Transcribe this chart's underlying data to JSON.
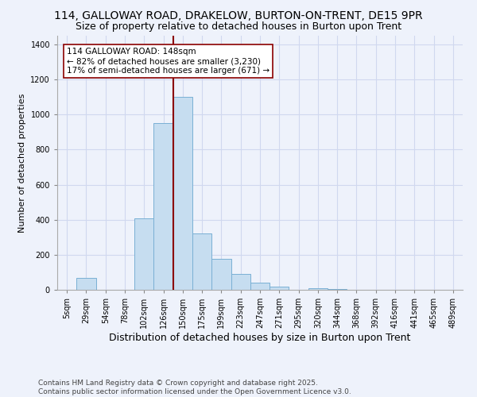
{
  "title": "114, GALLOWAY ROAD, DRAKELOW, BURTON-ON-TRENT, DE15 9PR",
  "subtitle": "Size of property relative to detached houses in Burton upon Trent",
  "xlabel": "Distribution of detached houses by size in Burton upon Trent",
  "ylabel": "Number of detached properties",
  "footnote1": "Contains HM Land Registry data © Crown copyright and database right 2025.",
  "footnote2": "Contains public sector information licensed under the Open Government Licence v3.0.",
  "bins": [
    "5sqm",
    "29sqm",
    "54sqm",
    "78sqm",
    "102sqm",
    "126sqm",
    "150sqm",
    "175sqm",
    "199sqm",
    "223sqm",
    "247sqm",
    "271sqm",
    "295sqm",
    "320sqm",
    "344sqm",
    "368sqm",
    "392sqm",
    "416sqm",
    "441sqm",
    "465sqm",
    "489sqm"
  ],
  "values": [
    0,
    70,
    0,
    0,
    410,
    950,
    1100,
    320,
    175,
    90,
    40,
    20,
    0,
    10,
    5,
    0,
    0,
    0,
    0,
    0,
    0
  ],
  "bar_color": "#c6ddf0",
  "bar_edge_color": "#7ab0d4",
  "vline_color": "#8b0000",
  "annotation_text": "114 GALLOWAY ROAD: 148sqm\n← 82% of detached houses are smaller (3,230)\n17% of semi-detached houses are larger (671) →",
  "annotation_box_color": "white",
  "annotation_box_edge": "#8b0000",
  "ylim": [
    0,
    1450
  ],
  "yticks": [
    0,
    200,
    400,
    600,
    800,
    1000,
    1200,
    1400
  ],
  "background_color": "#eef2fb",
  "grid_color": "#d0d8ef",
  "title_fontsize": 10,
  "subtitle_fontsize": 9,
  "xlabel_fontsize": 9,
  "ylabel_fontsize": 8,
  "tick_fontsize": 7,
  "annot_fontsize": 7.5,
  "footnote_fontsize": 6.5
}
